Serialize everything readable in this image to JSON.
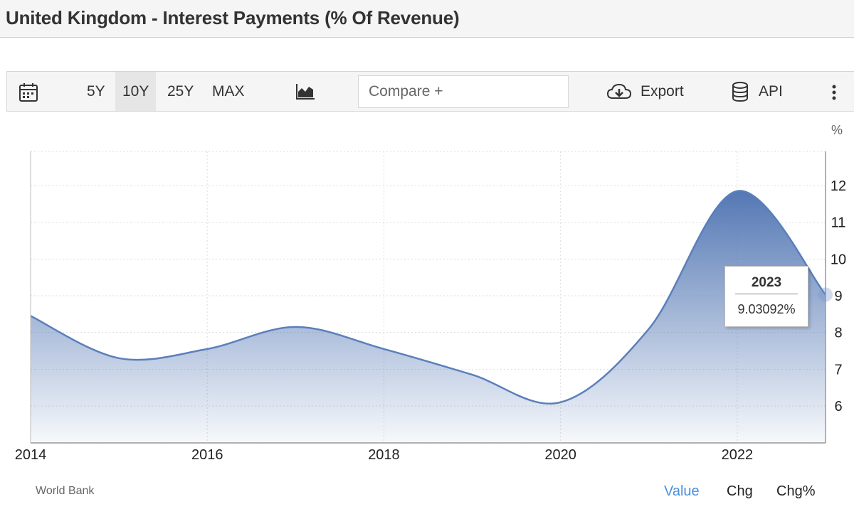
{
  "page": {
    "title": "United Kingdom - Interest Payments (% Of Revenue)"
  },
  "toolbar": {
    "ranges": [
      "5Y",
      "10Y",
      "25Y",
      "MAX"
    ],
    "active_range": "10Y",
    "compare_placeholder": "Compare +",
    "export_label": "Export",
    "api_label": "API"
  },
  "tooltip": {
    "year": "2023",
    "value": "9.03092%"
  },
  "footer": {
    "source": "World Bank",
    "value_label": "Value",
    "chg_label": "Chg",
    "chgpct_label": "Chg%"
  },
  "colors": {
    "line": "#5b7fbb",
    "fill_top": "#5478b4",
    "active_tab": "#4a90d9"
  },
  "chart_data": {
    "type": "area",
    "title": "United Kingdom - Interest Payments (% Of Revenue)",
    "unit_label": "%",
    "x": [
      2014,
      2015,
      2016,
      2017,
      2018,
      2019,
      2020,
      2021,
      2022,
      2023
    ],
    "values": [
      8.45,
      7.3,
      7.55,
      8.15,
      7.55,
      6.85,
      6.1,
      8.1,
      11.85,
      9.03092
    ],
    "series": [
      {
        "name": "Interest Payments",
        "values": [
          8.45,
          7.3,
          7.55,
          8.15,
          7.55,
          6.85,
          6.1,
          8.1,
          11.85,
          9.03092
        ]
      }
    ],
    "x_ticks": [
      "2014",
      "2016",
      "2018",
      "2020",
      "2022"
    ],
    "y_ticks": [
      "6",
      "7",
      "8",
      "9",
      "10",
      "11",
      "12"
    ],
    "xlim": [
      2014,
      2023
    ],
    "ylim": [
      5,
      13
    ],
    "grid": true,
    "y_axis_side": "right"
  }
}
